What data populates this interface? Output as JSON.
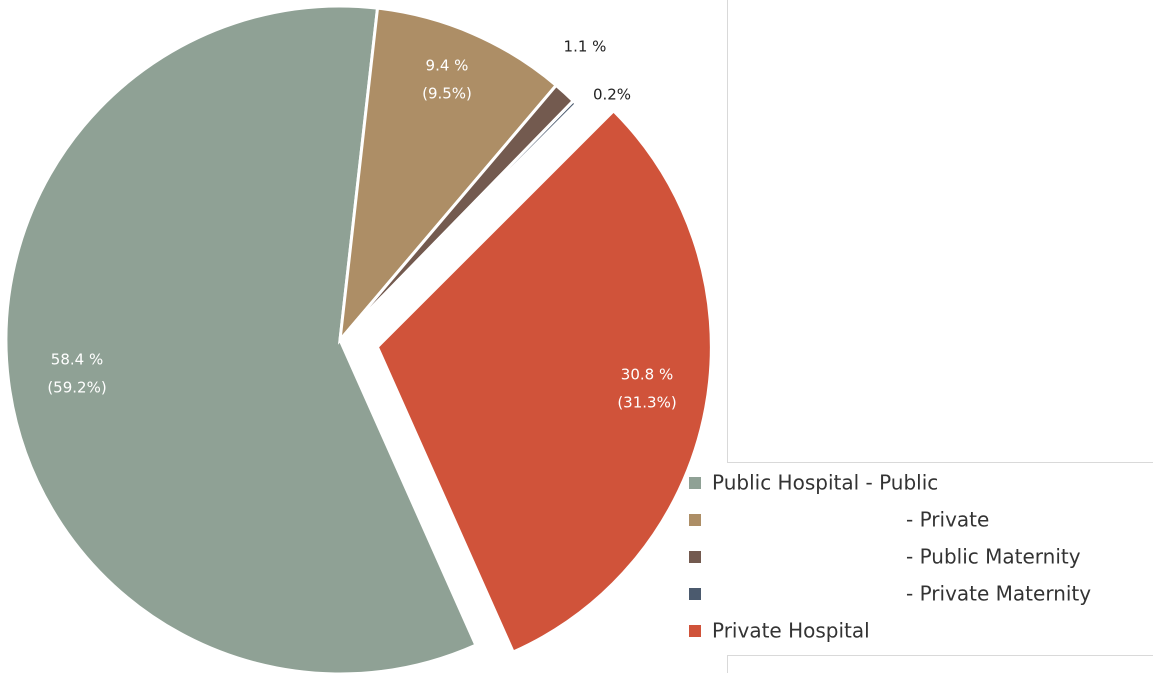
{
  "chart_data": {
    "type": "pie",
    "series": [
      {
        "name": "Public Hospital - Public",
        "color": "#8fa195",
        "value": 58.4,
        "value_label": "58.4 %",
        "sub_label": "(59.2%)"
      },
      {
        "name": "- Private",
        "color": "#ad8e66",
        "value": 9.4,
        "value_label": "9.4 %",
        "sub_label": "(9.5%)"
      },
      {
        "name": "- Public Maternity",
        "color": "#735a4f",
        "value": 1.1,
        "value_label": "1.1 %",
        "sub_label": null
      },
      {
        "name": "- Private Maternity",
        "color": "#4b5a6e",
        "value": 0.2,
        "value_label": "0.2%",
        "sub_label": null
      },
      {
        "name": "Private Hospital",
        "color": "#d0533a",
        "value": 30.8,
        "value_label": "30.8 %",
        "sub_label": "(31.3%)"
      }
    ]
  }
}
